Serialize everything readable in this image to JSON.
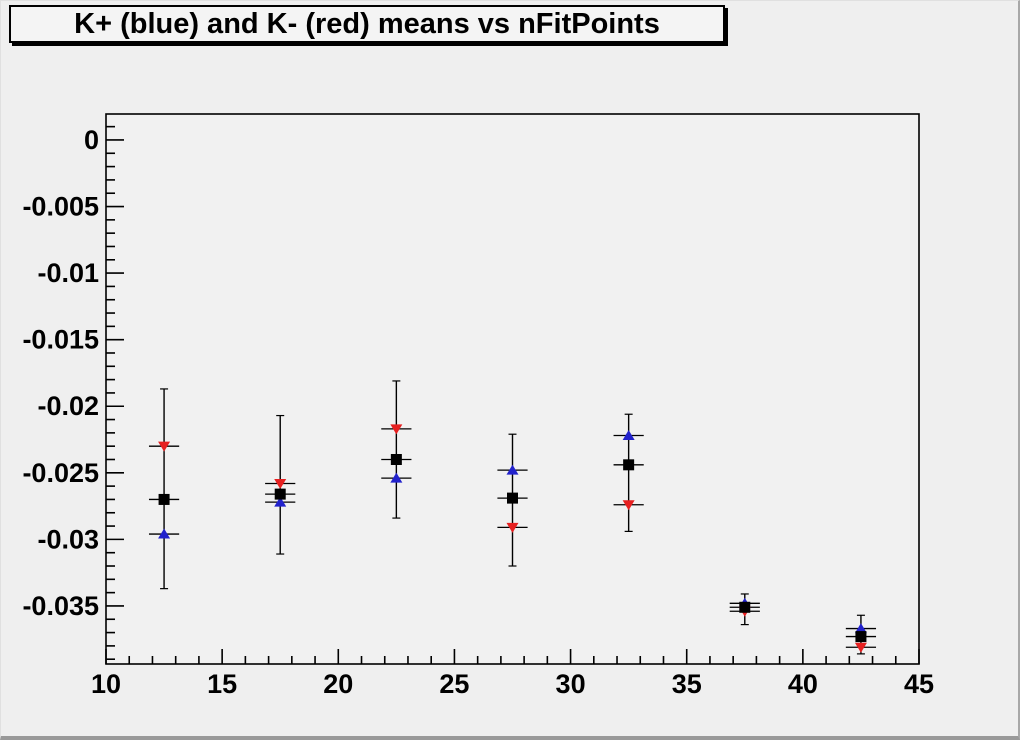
{
  "window": {
    "background": "#efefef",
    "frame_background": "#f1f1f1",
    "frame_border": "#000000",
    "shadow_color": "#999999"
  },
  "title_box": {
    "text": "K+ (blue) and K- (red) means vs nFitPoints"
  },
  "chart_data": {
    "type": "scatter",
    "title": "K+ (blue) and K- (red) means vs nFitPoints",
    "xlabel": "",
    "ylabel": "",
    "xlim": [
      10,
      45
    ],
    "ylim": [
      -0.03936,
      0.00195
    ],
    "grid": false,
    "legend_position": "none",
    "x": [
      12.5,
      17.5,
      22.5,
      27.5,
      32.5,
      37.5,
      42.5
    ],
    "x_error_halfwidth": 0.65,
    "series": [
      {
        "name": "K+",
        "color": "#2222cc",
        "marker": "triangle-up",
        "values": [
          -0.0296,
          -0.0272,
          -0.0254,
          -0.0248,
          -0.0222,
          -0.0348,
          -0.0367
        ]
      },
      {
        "name": "K-",
        "color": "#e62020",
        "marker": "triangle-down",
        "values": [
          -0.023,
          -0.0258,
          -0.0217,
          -0.0291,
          -0.0274,
          -0.0354,
          -0.0381
        ]
      },
      {
        "name": "mean",
        "color": "#000000",
        "marker": "square",
        "values": [
          -0.027,
          -0.0266,
          -0.024,
          -0.0269,
          -0.0244,
          -0.0351,
          -0.0373
        ]
      }
    ],
    "error_bars": [
      {
        "x": 12.5,
        "low": -0.0337,
        "high": -0.0187
      },
      {
        "x": 17.5,
        "low": -0.0311,
        "high": -0.0207
      },
      {
        "x": 22.5,
        "low": -0.0284,
        "high": -0.0181
      },
      {
        "x": 27.5,
        "low": -0.032,
        "high": -0.0221
      },
      {
        "x": 32.5,
        "low": -0.0294,
        "high": -0.0206
      },
      {
        "x": 37.5,
        "low": -0.0364,
        "high": -0.0341
      },
      {
        "x": 42.5,
        "low": -0.0386,
        "high": -0.0357
      }
    ],
    "xticks": [
      {
        "v": 10,
        "label": "10"
      },
      {
        "v": 15,
        "label": "15"
      },
      {
        "v": 20,
        "label": "20"
      },
      {
        "v": 25,
        "label": "25"
      },
      {
        "v": 30,
        "label": "30"
      },
      {
        "v": 35,
        "label": "35"
      },
      {
        "v": 40,
        "label": "40"
      },
      {
        "v": 45,
        "label": "45"
      }
    ],
    "yticks": [
      {
        "v": 0,
        "label": "0"
      },
      {
        "v": -0.005,
        "label": "-0.005"
      },
      {
        "v": -0.01,
        "label": "-0.01"
      },
      {
        "v": -0.015,
        "label": "-0.015"
      },
      {
        "v": -0.02,
        "label": "-0.02"
      },
      {
        "v": -0.025,
        "label": "-0.025"
      },
      {
        "v": -0.03,
        "label": "-0.03"
      },
      {
        "v": -0.035,
        "label": "-0.035"
      }
    ],
    "minor_tick_step_x": 1,
    "minor_tick_step_y": 0.001
  }
}
